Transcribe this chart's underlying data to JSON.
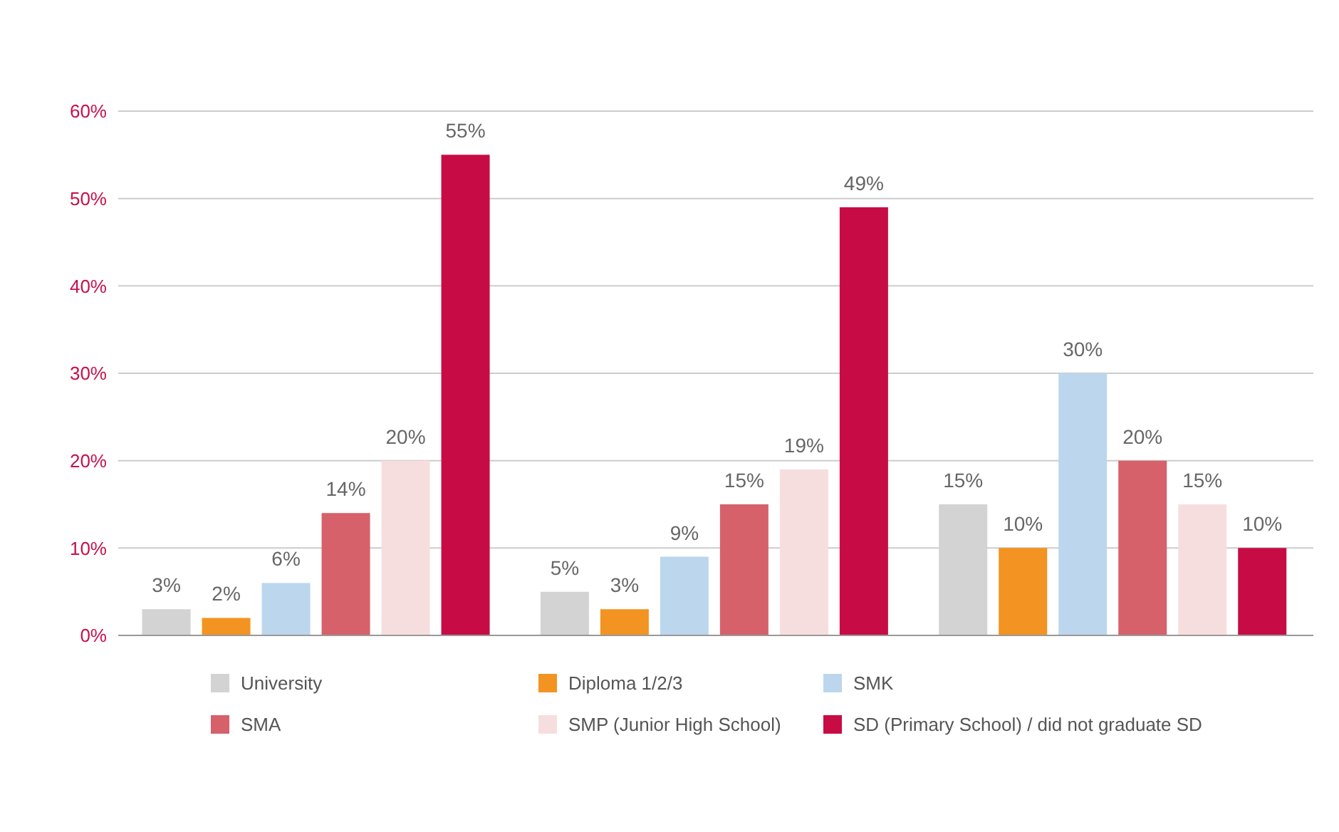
{
  "chart_data": {
    "type": "bar",
    "categories": [
      null,
      null,
      null
    ],
    "series": [
      {
        "name": "University",
        "color": "#d3d3d3",
        "values": [
          3,
          5,
          15
        ],
        "value_labels": [
          "3%",
          "5%",
          "15%"
        ]
      },
      {
        "name": "Diploma 1/2/3",
        "color": "#f39321",
        "values": [
          2,
          3,
          10
        ],
        "value_labels": [
          "2%",
          "3%",
          "10%"
        ]
      },
      {
        "name": "SMK",
        "color": "#bcd6ee",
        "values": [
          6,
          9,
          30
        ],
        "value_labels": [
          "6%",
          "9%",
          "30%"
        ]
      },
      {
        "name": "SMA",
        "color": "#d6616b",
        "values": [
          14,
          15,
          20
        ],
        "value_labels": [
          "14%",
          "15%",
          "20%"
        ]
      },
      {
        "name": "SMP (Junior High School)",
        "color": "#f7dede",
        "values": [
          20,
          19,
          15
        ],
        "value_labels": [
          "20%",
          "19%",
          "15%"
        ]
      },
      {
        "name": "SD (Primary School) / did not graduate SD",
        "color": "#c70c45",
        "values": [
          55,
          49,
          10
        ],
        "value_labels": [
          "55%",
          "49%",
          "10%"
        ]
      }
    ],
    "ylim": [
      0,
      60
    ],
    "yticks": [
      {
        "value": 0,
        "label": "0%"
      },
      {
        "value": 10,
        "label": "10%"
      },
      {
        "value": 20,
        "label": "20%"
      },
      {
        "value": 30,
        "label": "30%"
      },
      {
        "value": 40,
        "label": "40%"
      },
      {
        "value": 50,
        "label": "50%"
      },
      {
        "value": 60,
        "label": "60%"
      }
    ],
    "grid": "y",
    "legend": "bottom"
  }
}
